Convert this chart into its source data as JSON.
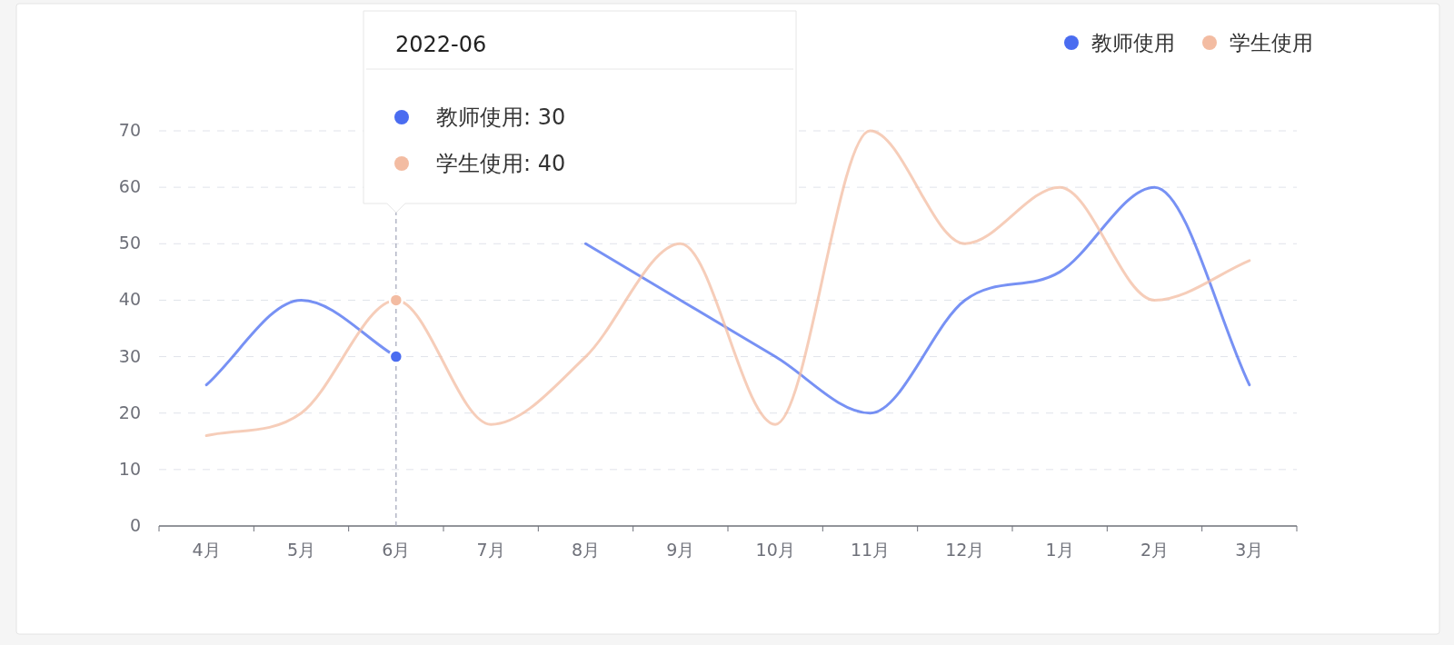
{
  "chart_data": {
    "type": "line",
    "categories": [
      "4月",
      "5月",
      "6月",
      "7月",
      "8月",
      "9月",
      "10月",
      "11月",
      "12月",
      "1月",
      "2月",
      "3月"
    ],
    "series": [
      {
        "name": "教师使用",
        "color": "#4a6cf0",
        "values": [
          25,
          40,
          30,
          null,
          50,
          40,
          30,
          20,
          40,
          45,
          60,
          25
        ]
      },
      {
        "name": "学生使用",
        "color": "#f3bca2",
        "values": [
          16,
          20,
          40,
          18,
          30,
          50,
          18,
          70,
          50,
          60,
          40,
          47
        ]
      }
    ],
    "ylim": [
      0,
      70
    ],
    "yticks": [
      0,
      10,
      20,
      30,
      40,
      50,
      60,
      70
    ],
    "grid": "y",
    "legend": "top right",
    "marker": "none",
    "line_style": "solid",
    "ref_lines": [
      {
        "axis": "x",
        "value": "6月",
        "line_style": "dashed",
        "color": "#a0a4b8"
      }
    ],
    "annotations": [
      "2022-06",
      "教师使用: 30",
      "学生使用: 40"
    ]
  }
}
